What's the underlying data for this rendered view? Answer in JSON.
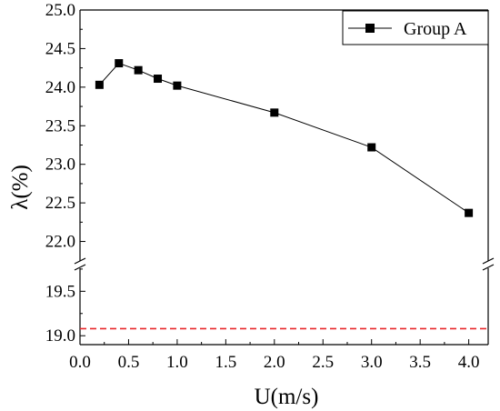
{
  "chart_data": {
    "type": "line",
    "xlabel": "U(m/s)",
    "ylabel": "λ(%)",
    "xlim": [
      0.0,
      4.2
    ],
    "ylim_upper_segment": [
      21.7,
      25.0
    ],
    "ylim_lower_segment": [
      18.9,
      19.8
    ],
    "axis_break": true,
    "grid": false,
    "legend_position": "top-right",
    "x_ticks": [
      "0.0",
      "0.5",
      "1.0",
      "1.5",
      "2.0",
      "2.5",
      "3.0",
      "3.5",
      "4.0"
    ],
    "y_ticks_upper": [
      "22.0",
      "22.5",
      "23.0",
      "23.5",
      "24.0",
      "24.5",
      "25.0"
    ],
    "y_ticks_lower": [
      "19.0",
      "19.5"
    ],
    "series": [
      {
        "name": "Group A",
        "color": "#000000",
        "marker": "square",
        "x": [
          0.2,
          0.4,
          0.6,
          0.8,
          1.0,
          2.0,
          3.0,
          4.0
        ],
        "y": [
          24.03,
          24.31,
          24.22,
          24.11,
          24.02,
          23.67,
          23.22,
          22.37
        ]
      }
    ],
    "reference_line": {
      "y": 19.08,
      "color": "#e8282b",
      "style": "dashed"
    }
  }
}
